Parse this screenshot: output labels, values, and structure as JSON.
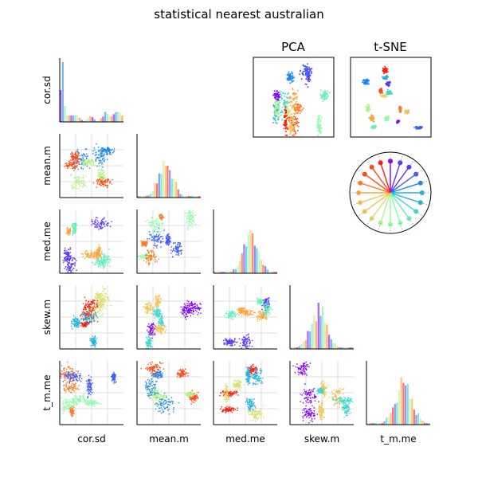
{
  "chart_data": {
    "type": "scatter",
    "title": "statistical nearest australian",
    "variables": [
      "cor.sd",
      "mean.m",
      "med.me",
      "skew.m",
      "t_m.me"
    ],
    "layout": "lower-triangular pair plot with histograms on the diagonal",
    "insets": [
      {
        "title": "PCA",
        "type": "scatter"
      },
      {
        "title": "t-SNE",
        "type": "scatter"
      },
      {
        "title": "",
        "type": "radial color key",
        "spokes": 20
      }
    ],
    "palette": [
      "#7f00ff",
      "#5a35fb",
      "#3c5cf4",
      "#1f88ea",
      "#20b2dc",
      "#40d6cc",
      "#66efb8",
      "#8cfda3",
      "#b2f28a",
      "#d9de70",
      "#f2c455",
      "#fea33b",
      "#ff7a2a",
      "#ff4c17",
      "#ff1a08"
    ],
    "grid": true
  }
}
